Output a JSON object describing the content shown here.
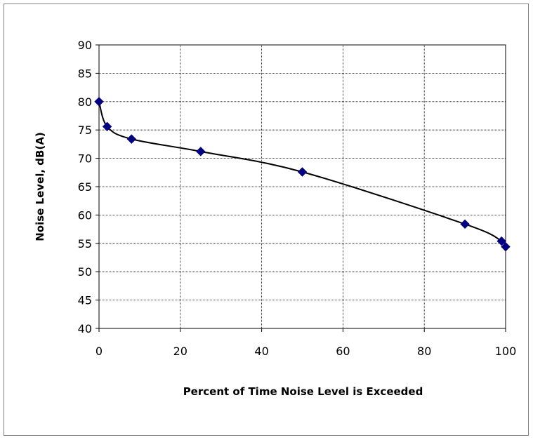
{
  "chart_data": {
    "type": "line",
    "title": "",
    "xlabel": "Percent of Time Noise Level is Exceeded",
    "ylabel": "Noise Level, dB(A)",
    "xlim": [
      0,
      100
    ],
    "ylim": [
      40,
      90
    ],
    "xticks": [
      0,
      20,
      40,
      60,
      80,
      100
    ],
    "yticks": [
      40,
      45,
      50,
      55,
      60,
      65,
      70,
      75,
      80,
      85,
      90
    ],
    "grid": true,
    "legend": "none",
    "series": [
      {
        "marker": "diamond",
        "smooth": true,
        "color": "#000080",
        "line_color": "#000000",
        "points": [
          {
            "x": 0,
            "y": 80.0
          },
          {
            "x": 2,
            "y": 75.6
          },
          {
            "x": 8,
            "y": 73.4
          },
          {
            "x": 25,
            "y": 71.2
          },
          {
            "x": 50,
            "y": 67.6
          },
          {
            "x": 90,
            "y": 58.4
          },
          {
            "x": 99,
            "y": 55.4
          },
          {
            "x": 100,
            "y": 54.4
          }
        ]
      }
    ]
  }
}
